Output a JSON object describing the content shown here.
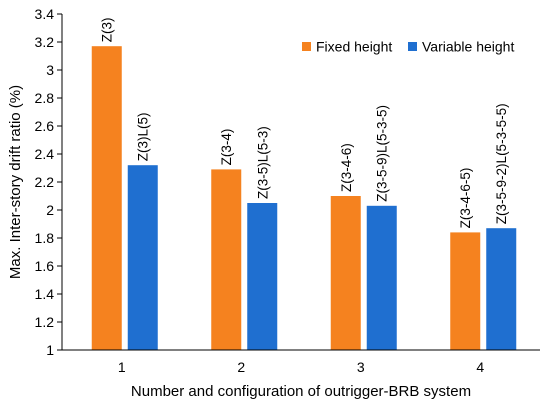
{
  "chart_data": {
    "type": "bar",
    "title": "",
    "xlabel": "Number and configuration of outrigger-BRB system",
    "ylabel": "Max. Inter-story drift ratio (%)",
    "ylim": [
      1,
      3.4
    ],
    "y_ticks": [
      "1",
      "1.2",
      "1.4",
      "1.6",
      "1.8",
      "2",
      "2.2",
      "2.4",
      "2.6",
      "2.8",
      "3",
      "3.2",
      "3.4"
    ],
    "categories": [
      "1",
      "2",
      "3",
      "4"
    ],
    "grid": false,
    "legend_position": "top-right",
    "series": [
      {
        "name": "Fixed height",
        "color": "#F5821F",
        "values": [
          3.17,
          2.29,
          2.1,
          1.84
        ],
        "labels": [
          "Z(3)",
          "Z(3-4)",
          "Z(3-4-6)",
          "Z(3-4-6-5)"
        ]
      },
      {
        "name": "Variable height",
        "color": "#1F6FD0",
        "values": [
          2.32,
          2.05,
          2.03,
          1.87
        ],
        "labels": [
          "Z(3)L(5)",
          "Z(3-5)L(5-3)",
          "Z(3-5-9)L(5-3-5)",
          "Z(3-5-9-2)L(5-3-5-5)"
        ]
      }
    ]
  }
}
